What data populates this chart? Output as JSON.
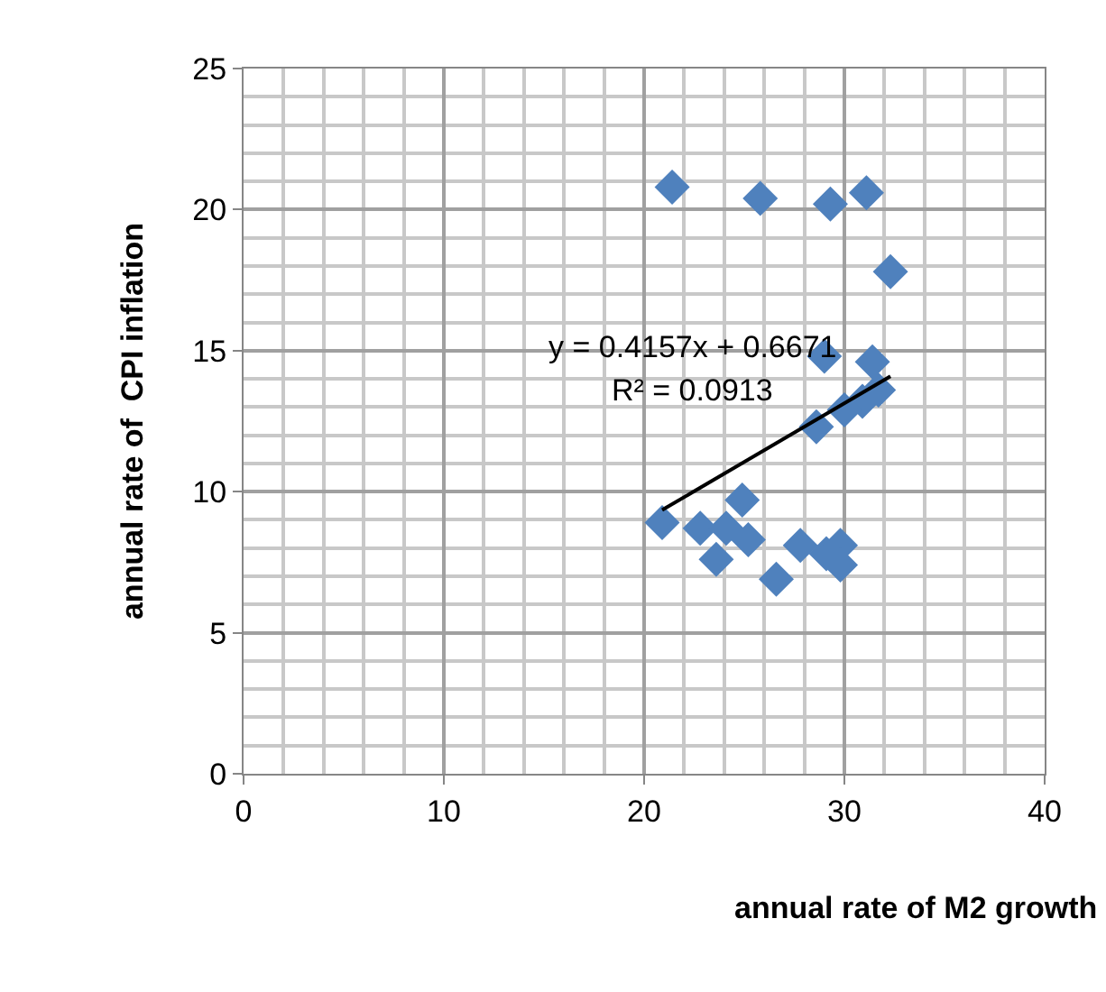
{
  "chart_data": {
    "type": "scatter",
    "xlabel": "annual rate of M2 growth",
    "ylabel": "annual rate of  CPI inflation",
    "xlim": [
      0,
      40
    ],
    "xticks": [
      0,
      10,
      20,
      30,
      40
    ],
    "ylim": [
      0,
      25
    ],
    "yticks": [
      0,
      5,
      10,
      15,
      20,
      25
    ],
    "grid": true,
    "legend": false,
    "marker": "diamond",
    "annotations": [
      "y = 0.4157x + 0.6671",
      "R² = 0.0913"
    ],
    "series": [
      {
        "color": "#4f81bd",
        "x": [
          20.9,
          21.4,
          25.8,
          29.3,
          31.1,
          32.3,
          29.0,
          31.4,
          31.7,
          30.9,
          30.0,
          28.6,
          24.9,
          22.8,
          23.9,
          24.1,
          25.2,
          23.6,
          26.6,
          27.8,
          29.1,
          29.8,
          29.8
        ],
        "values": [
          8.9,
          20.8,
          20.4,
          20.2,
          20.6,
          17.8,
          14.8,
          14.6,
          13.6,
          13.2,
          12.9,
          12.3,
          9.7,
          8.7,
          null,
          8.7,
          8.3,
          7.6,
          6.9,
          8.1,
          7.8,
          8.1,
          7.4
        ]
      },
      {
        "type": "line",
        "color": "#000000",
        "x": [
          20.9,
          32.3
        ],
        "values": [
          9.35,
          14.09
        ],
        "marker": "none"
      }
    ]
  }
}
